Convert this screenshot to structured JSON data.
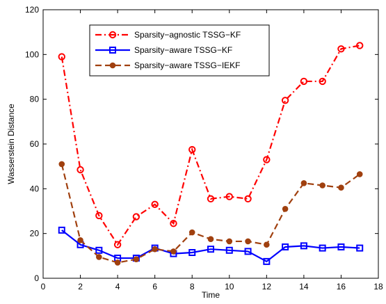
{
  "chart_data": {
    "type": "line",
    "xlabel": "Time",
    "ylabel": "Wasserstein Distance",
    "xlim": [
      0,
      18
    ],
    "ylim": [
      0,
      120
    ],
    "xticks": [
      0,
      2,
      4,
      6,
      8,
      10,
      12,
      14,
      16,
      18
    ],
    "yticks": [
      0,
      20,
      40,
      60,
      80,
      100,
      120
    ],
    "legend_position": "top-left",
    "grid": false,
    "x": [
      1,
      2,
      3,
      4,
      5,
      6,
      7,
      8,
      9,
      10,
      11,
      12,
      13,
      14,
      15,
      16,
      17
    ],
    "series": [
      {
        "name": "Sparsity−agnostic TSSG−KF",
        "color": "#ff0000",
        "line_style": "dash-dot",
        "marker": "open-circle",
        "values": [
          99,
          48.5,
          28,
          15,
          27.5,
          33,
          24.5,
          57.5,
          35.5,
          36.5,
          35.5,
          53,
          79.5,
          88,
          88,
          102.5,
          104
        ]
      },
      {
        "name": "Sparsity−aware TSSG−KF",
        "color": "#0000ff",
        "line_style": "solid",
        "marker": "open-square",
        "values": [
          21.5,
          15,
          12.5,
          9,
          9,
          13.5,
          11,
          11.5,
          13,
          12.5,
          12,
          7.5,
          14,
          14.5,
          13.5,
          14,
          13.5
        ]
      },
      {
        "name": "Sparsity−aware TSSG−IEKF",
        "color": "#a0400f",
        "line_style": "dashed",
        "marker": "filled-circle",
        "values": [
          51,
          17,
          9.5,
          7,
          8.5,
          13,
          12,
          20.5,
          17.5,
          16.5,
          16.5,
          15,
          31,
          42.5,
          41.5,
          40.5,
          46.5
        ]
      }
    ]
  }
}
